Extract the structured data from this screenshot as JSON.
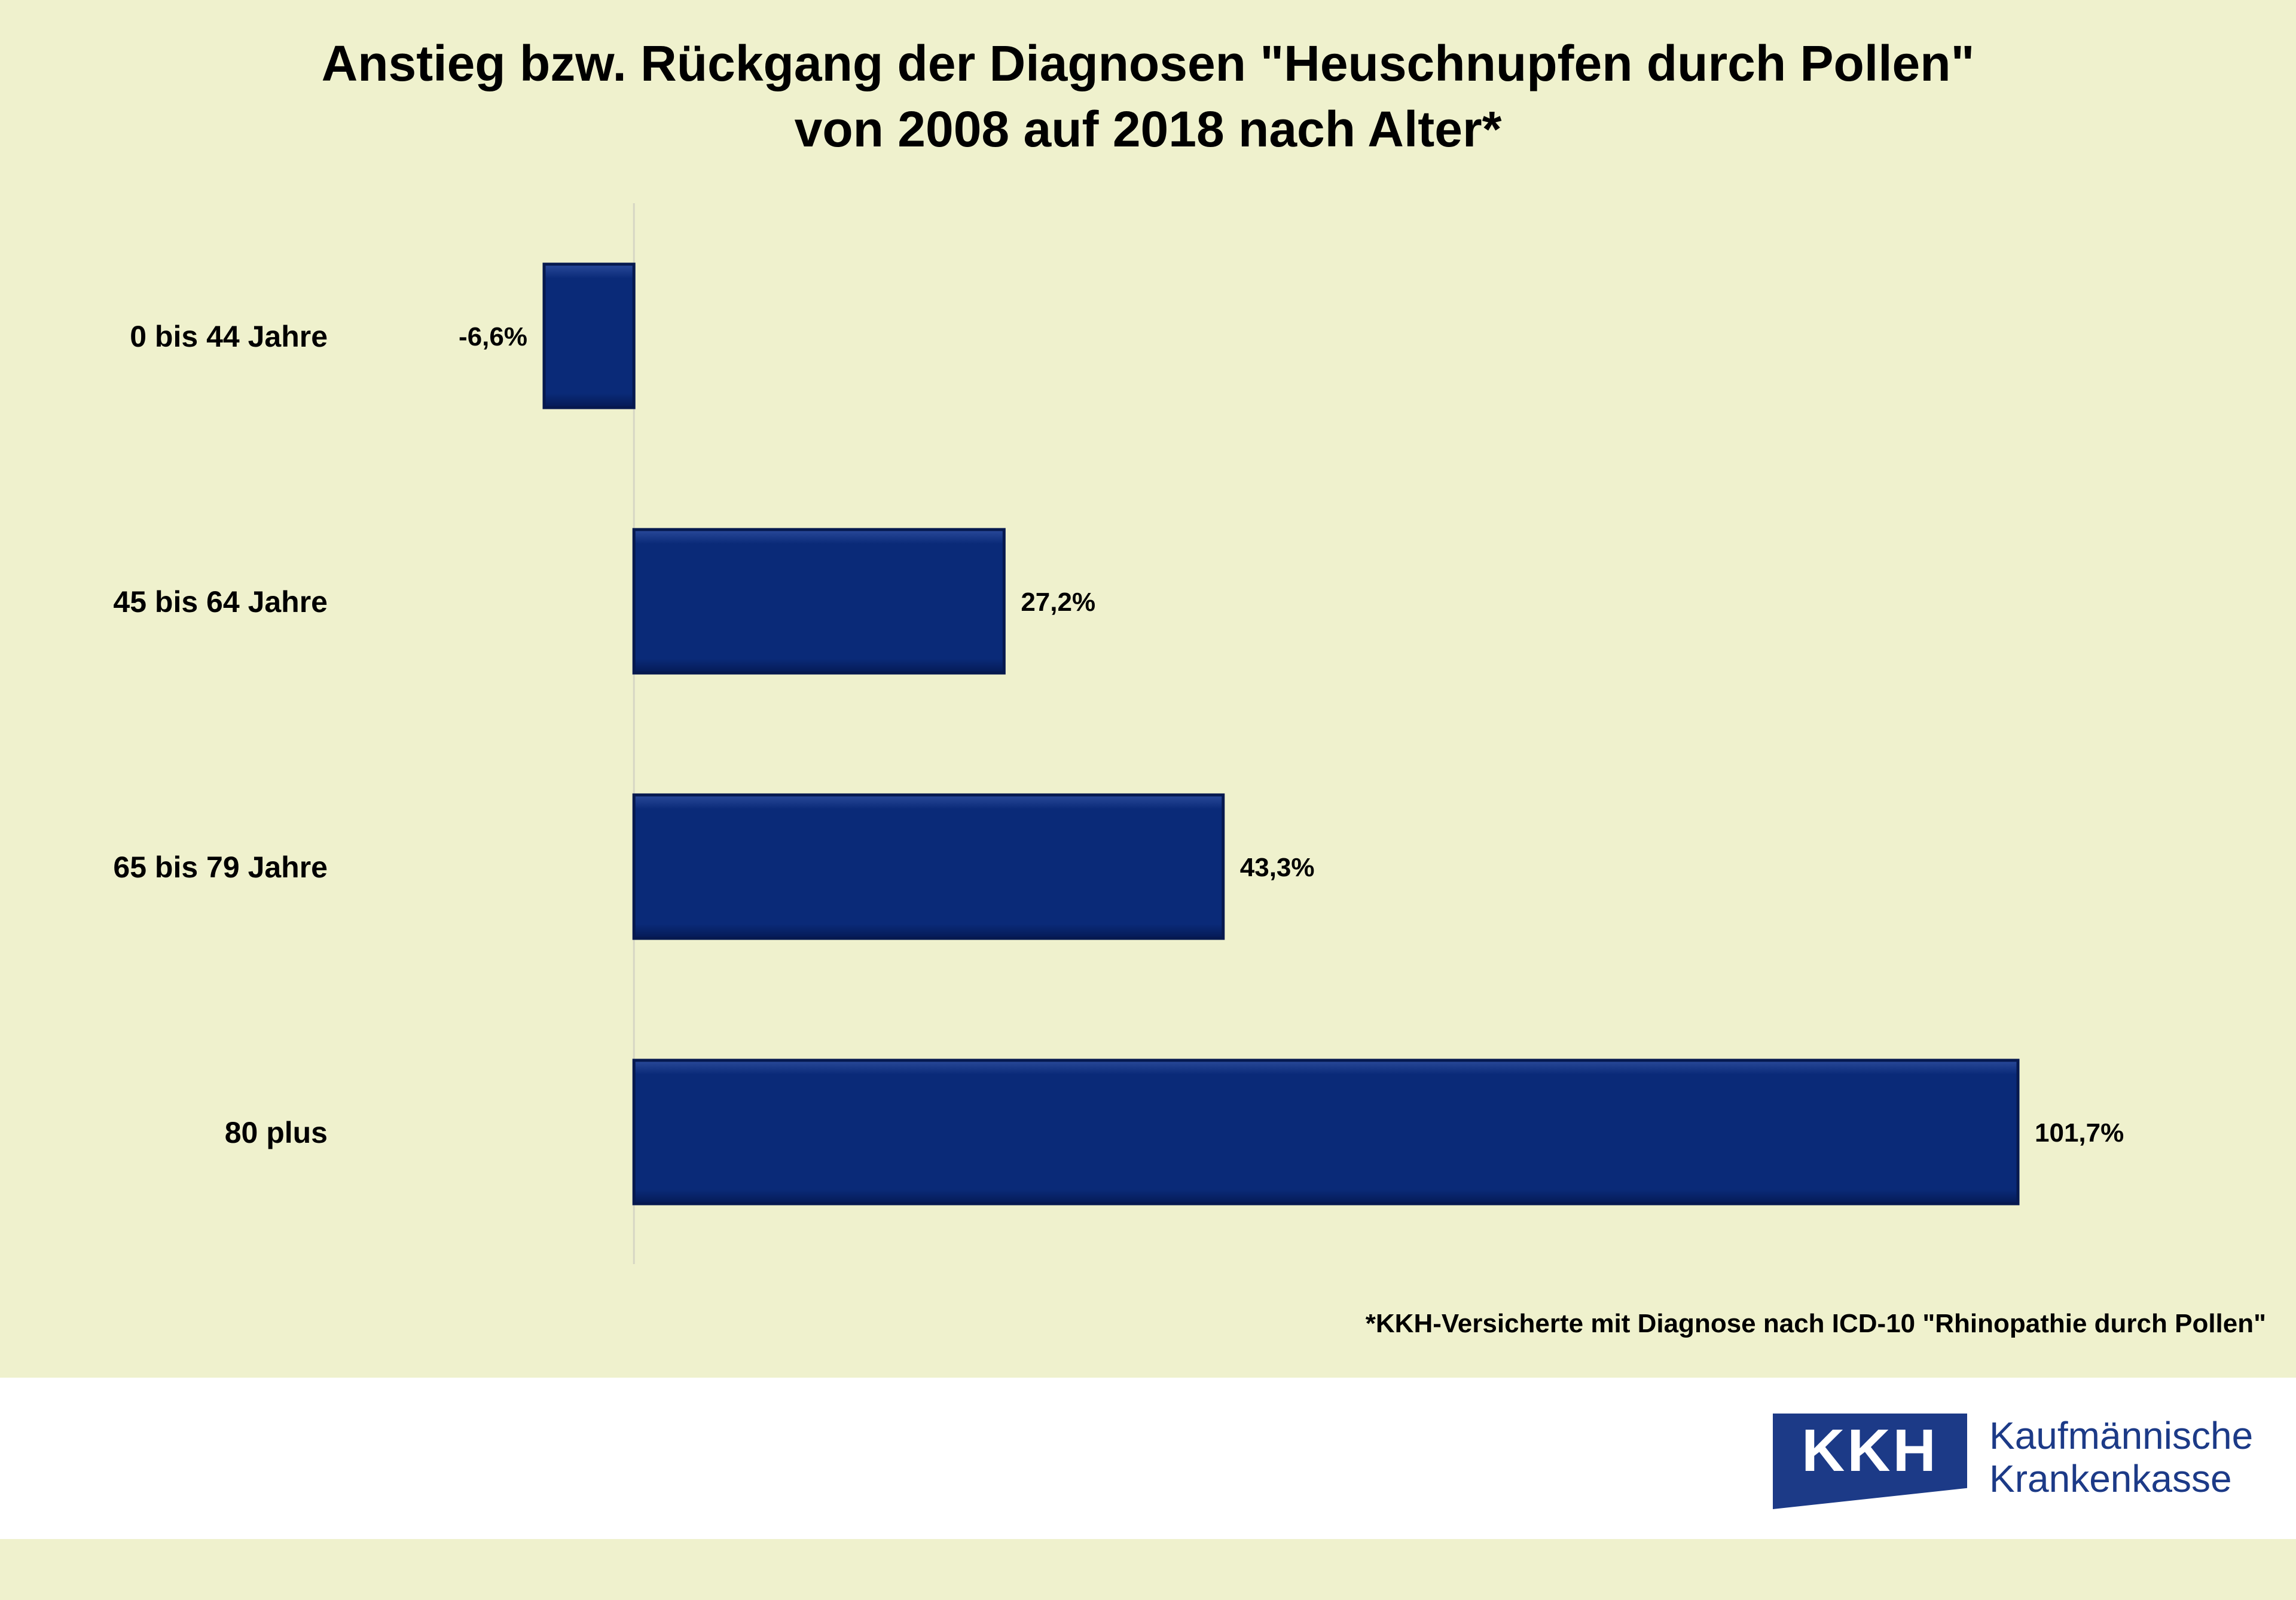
{
  "title_lines": [
    "Anstieg bzw. Rückgang der Diagnosen \"Heuschnupfen durch Pollen\"",
    "von 2008 auf 2018  nach Alter*"
  ],
  "footnote": "*KKH-Versicherte mit Diagnose nach ICD-10 \"Rhinopathie durch Pollen\"",
  "logo": {
    "mark": "KKH",
    "name_line_1": "Kaufmännische",
    "name_line_2": "Krankenkasse",
    "color": "#1c3a87"
  },
  "colors": {
    "background": "#eff1cd",
    "bar_fill": "#0a2a78",
    "bar_edge": "#06194f"
  },
  "chart_data": {
    "type": "bar",
    "orientation": "horizontal",
    "title": "Anstieg bzw. Rückgang der Diagnosen \"Heuschnupfen durch Pollen\" von 2008 auf 2018  nach Alter*",
    "categories": [
      "0 bis 44 Jahre",
      "45 bis 64 Jahre",
      "65 bis 79 Jahre",
      "80 plus"
    ],
    "values": [
      -6.6,
      27.2,
      43.3,
      101.7
    ],
    "data_labels": [
      "-6,6%",
      "27,2%",
      "43,3%",
      "101,7%"
    ],
    "unit": "%",
    "xlim": [
      -6.6,
      101.7
    ],
    "grid": false,
    "legend": "none"
  }
}
